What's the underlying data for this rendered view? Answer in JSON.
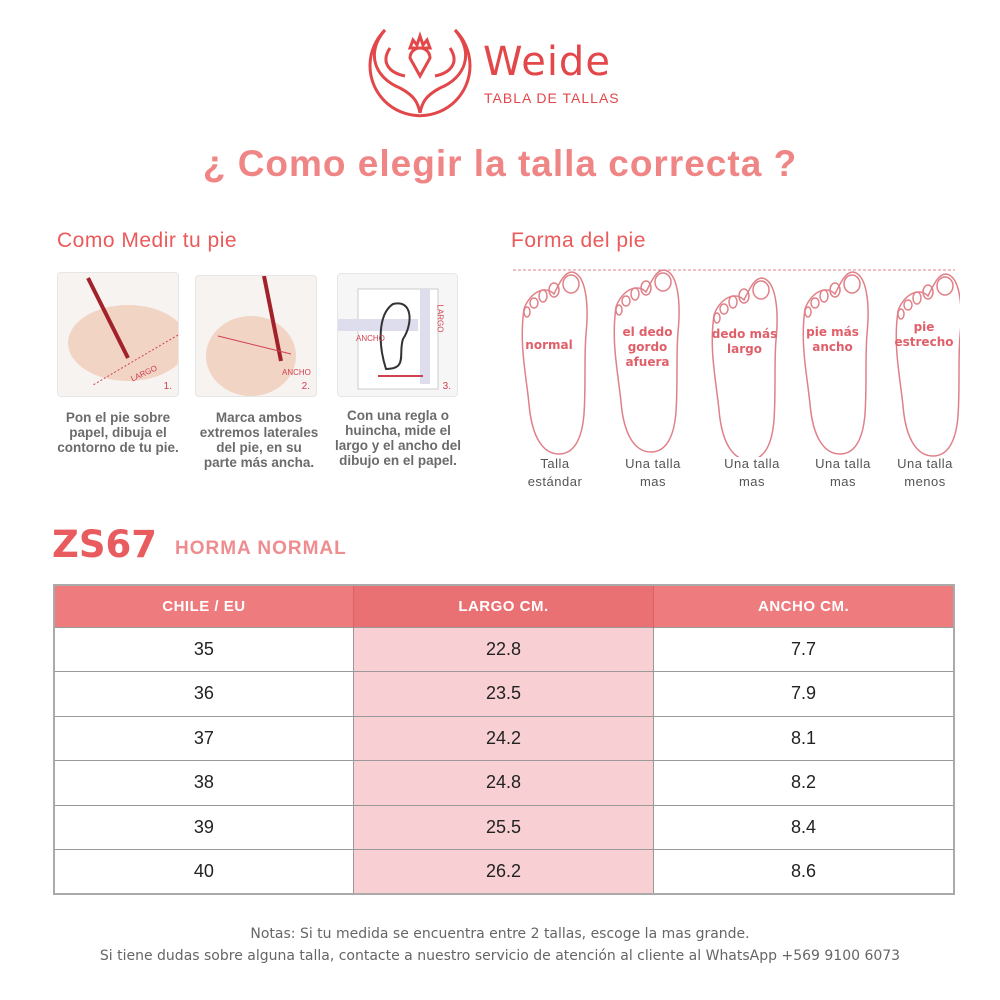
{
  "brand": {
    "name": "Weide",
    "subtitle": "TABLA DE TALLAS",
    "color": "#e2474a"
  },
  "title": "¿ Como elegir la talla correcta ?",
  "measure": {
    "heading": "Como Medir tu pie",
    "steps": [
      {
        "number": "1.",
        "image_label": "LARGO",
        "text": "Pon el pie sobre papel, dibuja el contorno de tu pie."
      },
      {
        "number": "2.",
        "image_label": "ANCHO",
        "text": "Marca ambos extremos laterales del pie, en su parte más ancha."
      },
      {
        "number": "3.",
        "image_label": "ANCHO",
        "image_label2": "LARGO",
        "text": "Con una regla o huincha, mide el largo y el ancho del dibujo en el papel."
      }
    ]
  },
  "shape": {
    "heading": "Forma del pie",
    "feet": [
      {
        "label": "normal",
        "caption1": "Talla",
        "caption2": "estándar"
      },
      {
        "label": "el dedo gordo afuera",
        "caption1": "Una talla",
        "caption2": "mas"
      },
      {
        "label": "dedo más largo",
        "caption1": "Una talla",
        "caption2": "mas"
      },
      {
        "label": "pie más ancho",
        "caption1": "Una talla",
        "caption2": "mas"
      },
      {
        "label": "pie estrecho",
        "caption1": "Una talla",
        "caption2": "menos"
      }
    ]
  },
  "model": {
    "code": "ZS67",
    "horma": "HORMA NORMAL"
  },
  "table": {
    "headers": [
      "CHILE / EU",
      "LARGO CM.",
      "ANCHO CM."
    ],
    "rows": [
      [
        "35",
        "22.8",
        "7.7"
      ],
      [
        "36",
        "23.5",
        "7.9"
      ],
      [
        "37",
        "24.2",
        "8.1"
      ],
      [
        "38",
        "24.8",
        "8.2"
      ],
      [
        "39",
        "25.5",
        "8.4"
      ],
      [
        "40",
        "26.2",
        "8.6"
      ]
    ],
    "header_color": "#ee7b7e",
    "highlight_color": "#f8d0d3"
  },
  "notes": [
    "Notas: Si tu medida se encuentra entre 2 tallas, escoge la mas grande.",
    "Si tiene dudas sobre alguna talla, contacte a nuestro servicio de atención al cliente al WhatsApp +569 9100 6073"
  ]
}
